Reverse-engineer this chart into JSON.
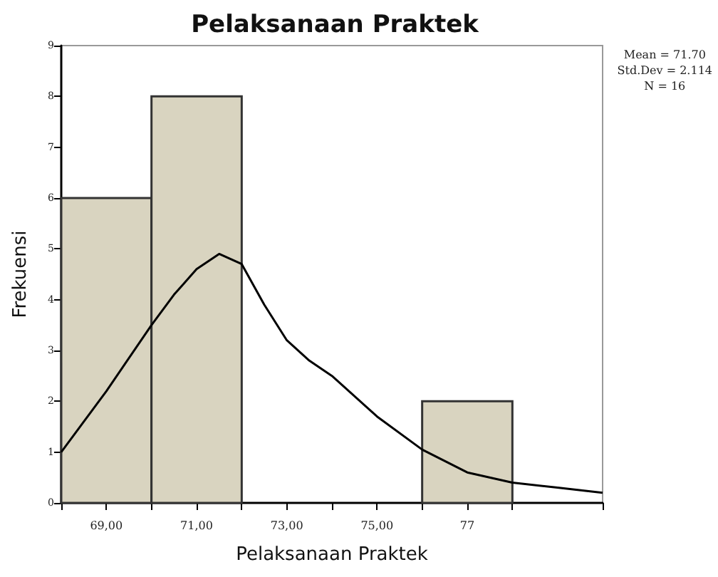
{
  "chart_data": {
    "type": "histogram",
    "title": "Pelaksanaan Praktek",
    "xlabel": "Pelaksanaan Praktek",
    "ylabel": "Frekuensi",
    "bins": [
      68,
      70,
      72,
      74,
      76,
      78,
      80
    ],
    "values": [
      6,
      8,
      0,
      0,
      2,
      0
    ],
    "color": "#d9d4c0",
    "series": [
      {
        "type": "line",
        "color": "#000000",
        "x": [
          68,
          69,
          70,
          70.5,
          71,
          71.5,
          72,
          72.5,
          73,
          73.5,
          74,
          75,
          76,
          77,
          78,
          79,
          80
        ],
        "values": [
          1.0,
          2.2,
          3.5,
          4.1,
          4.6,
          4.9,
          4.7,
          3.9,
          3.2,
          2.8,
          2.5,
          1.7,
          1.05,
          0.6,
          0.4,
          0.3,
          0.2
        ]
      }
    ],
    "xlim": [
      68,
      80
    ],
    "xticks": [
      {
        "value": 68,
        "label": null
      },
      {
        "value": 69,
        "label": "69,00"
      },
      {
        "value": 70,
        "label": null
      },
      {
        "value": 71,
        "label": "71,00"
      },
      {
        "value": 72,
        "label": null
      },
      {
        "value": 73,
        "label": "73,00"
      },
      {
        "value": 74,
        "label": null
      },
      {
        "value": 75,
        "label": "75,00"
      },
      {
        "value": 76,
        "label": null
      },
      {
        "value": 77,
        "label": "77"
      },
      {
        "value": 78,
        "label": null
      },
      {
        "value": 80,
        "label": null
      }
    ],
    "ylim": [
      0,
      9
    ],
    "yticks": [
      0,
      1,
      2,
      3,
      4,
      5,
      6,
      7,
      8,
      9
    ],
    "grid": false,
    "annotations": [
      "Mean = 71.70",
      "Std.Dev = 2.114",
      "N = 16"
    ]
  }
}
